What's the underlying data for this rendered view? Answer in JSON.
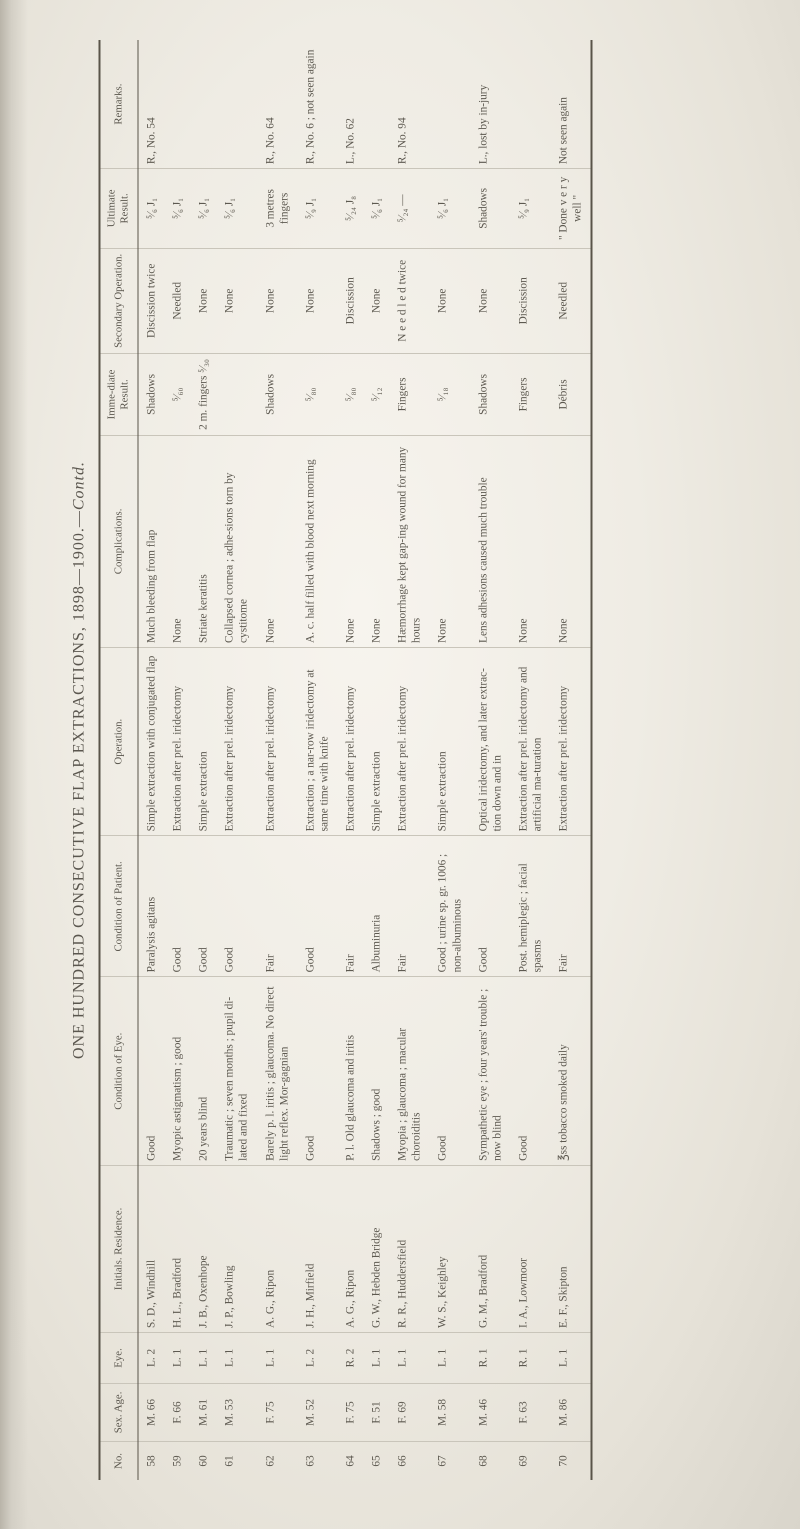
{
  "title_main": "ONE HUNDRED CONSECUTIVE FLAP EXTRACTIONS, 1898—1900.—",
  "title_contd": "Contd.",
  "headers": {
    "no": "No.",
    "sex_age": "Sex. Age.",
    "eye": "Eye.",
    "initials": "Initials. Residence.",
    "cond_eye": "Condition of Eye.",
    "cond_pat": "Condition of Patient.",
    "operation": "Operation.",
    "complications": "Complications.",
    "immediate": "Imme-diate Result.",
    "secondary": "Secondary Operation.",
    "ultimate": "Ultimate Result.",
    "remarks": "Remarks."
  },
  "rows": [
    {
      "no": "58",
      "sex": "M. 66",
      "eye": "L. 2",
      "init": "S. D., Windhill",
      "cond": "Good",
      "pat": "Paralysis agitans",
      "op": "Simple extraction with conjugated flap",
      "comp": "Much bleeding from flap",
      "imm": "Shadows",
      "sec": "Discission twice",
      "ult": "⁵⁄₆ J₁",
      "rem": "R., No. 54"
    },
    {
      "no": "59",
      "sex": "F. 66",
      "eye": "L. 1",
      "init": "H. L., Bradford",
      "cond": "Myopic astigmatism ; good",
      "pat": "Good",
      "op": "Extraction after prel. iridectomy",
      "comp": "None",
      "imm": "⁵⁄₆₀",
      "sec": "Needled",
      "ult": "⁵⁄₆ J₁",
      "rem": ""
    },
    {
      "no": "60",
      "sex": "M. 61",
      "eye": "L. 1",
      "init": "J. B., Oxenhope",
      "cond": "20 years blind",
      "pat": "Good",
      "op": "Simple extraction",
      "comp": "Striate keratitis",
      "imm": "2 m. fingers ⁵⁄₃₀",
      "sec": "None",
      "ult": "⁵⁄₆ J₁",
      "rem": ""
    },
    {
      "no": "61",
      "sex": "M. 53",
      "eye": "L. 1",
      "init": "J. P., Bowling",
      "cond": "Traumatic ; seven months ; pupil di-lated and fixed",
      "pat": "Good",
      "op": "Extraction after prel. iridectomy",
      "comp": "Collapsed cornea ; adhe-sions torn by cystitome",
      "imm": "",
      "sec": "None",
      "ult": "⁵⁄₆ J₁",
      "rem": ""
    },
    {
      "no": "62",
      "sex": "F. 75",
      "eye": "L. 1",
      "init": "A. G., Ripon",
      "cond": "Barely p. l. iritis ; glaucoma. No direct light reflex. Mor-gagnian",
      "pat": "Fair",
      "op": "Extraction after prel. iridectomy",
      "comp": "None",
      "imm": "Shadows",
      "sec": "None",
      "ult": "3 metres fingers",
      "rem": "R., No. 64"
    },
    {
      "no": "63",
      "sex": "M. 52",
      "eye": "L. 2",
      "init": "J. H., Mirfield",
      "cond": "Good",
      "pat": "Good",
      "op": "Extraction ; a nar-row iridectomy at same time with knife",
      "comp": "A. c. half filled with blood next morning",
      "imm": "⁵⁄₈₀",
      "sec": "None",
      "ult": "⁵⁄₉ J₁",
      "rem": "R., No. 6 ; not seen again"
    },
    {
      "no": "64",
      "sex": "F. 75",
      "eye": "R. 2",
      "init": "A. G., Ripon",
      "cond": "P. l. Old glaucoma and iritis",
      "pat": "Fair",
      "op": "Extraction after prel. iridectomy",
      "comp": "None",
      "imm": "⁵⁄₈₀",
      "sec": "Discission",
      "ult": "⁵⁄₂₄ J₈",
      "rem": "L., No. 62"
    },
    {
      "no": "65",
      "sex": "F. 51",
      "eye": "L. 1",
      "init": "G. W., Hebden Bridge",
      "cond": "Shadows ; good",
      "pat": "Albuminuria",
      "op": "Simple extraction",
      "comp": "None",
      "imm": "⁵⁄₁₂",
      "sec": "None",
      "ult": "⁵⁄₆ J₁",
      "rem": ""
    },
    {
      "no": "66",
      "sex": "F. 69",
      "eye": "L. 1",
      "init": "R. R., Huddersfield",
      "cond": "Myopia ; glaucoma ; macular choroiditis",
      "pat": "Fair",
      "op": "Extraction after prel. iridectomy",
      "comp": "Hæmorrhage kept gap-ing wound for many hours",
      "imm": "Fingers",
      "sec": "N e e d l e d twice",
      "ult": "⁵⁄₂₄ —",
      "rem": "R., No. 94"
    },
    {
      "no": "67",
      "sex": "M. 58",
      "eye": "L. 1",
      "init": "W. S., Keighley",
      "cond": "Good",
      "pat": "Good ; urine sp. gr. 1006 ; non-albuminous",
      "op": "Simple extraction",
      "comp": "None",
      "imm": "⁵⁄₁₈",
      "sec": "None",
      "ult": "⁵⁄₆ J₁",
      "rem": ""
    },
    {
      "no": "68",
      "sex": "M. 46",
      "eye": "R. 1",
      "init": "G. M., Bradford",
      "cond": "Sympathetic eye ; four years' trouble ; now blind",
      "pat": "Good",
      "op": "Optical iridectomy, and later extrac-tion down and in",
      "comp": "Lens adhesions caused much trouble",
      "imm": "Shadows",
      "sec": "None",
      "ult": "Shadows",
      "rem": "L., lost by in-jury"
    },
    {
      "no": "69",
      "sex": "F. 63",
      "eye": "R. 1",
      "init": "I. A., Lowmoor",
      "cond": "Good",
      "pat": "Post. hemiplegic ; facial spasms",
      "op": "Extraction after prel. iridectomy and artificial ma-turation",
      "comp": "None",
      "imm": "Fingers",
      "sec": "Discission",
      "ult": "⁵⁄₉ J₁",
      "rem": ""
    },
    {
      "no": "70",
      "sex": "M. 86",
      "eye": "L. 1",
      "init": "E. F., Skipton",
      "cond": "℥ss tobacco smoked daily",
      "pat": "Fair",
      "op": "Extraction after prel. iridectomy",
      "comp": "None",
      "imm": "Débris",
      "sec": "Needled",
      "ult": "\" Done v e r y well \"",
      "rem": "Not seen again"
    }
  ]
}
